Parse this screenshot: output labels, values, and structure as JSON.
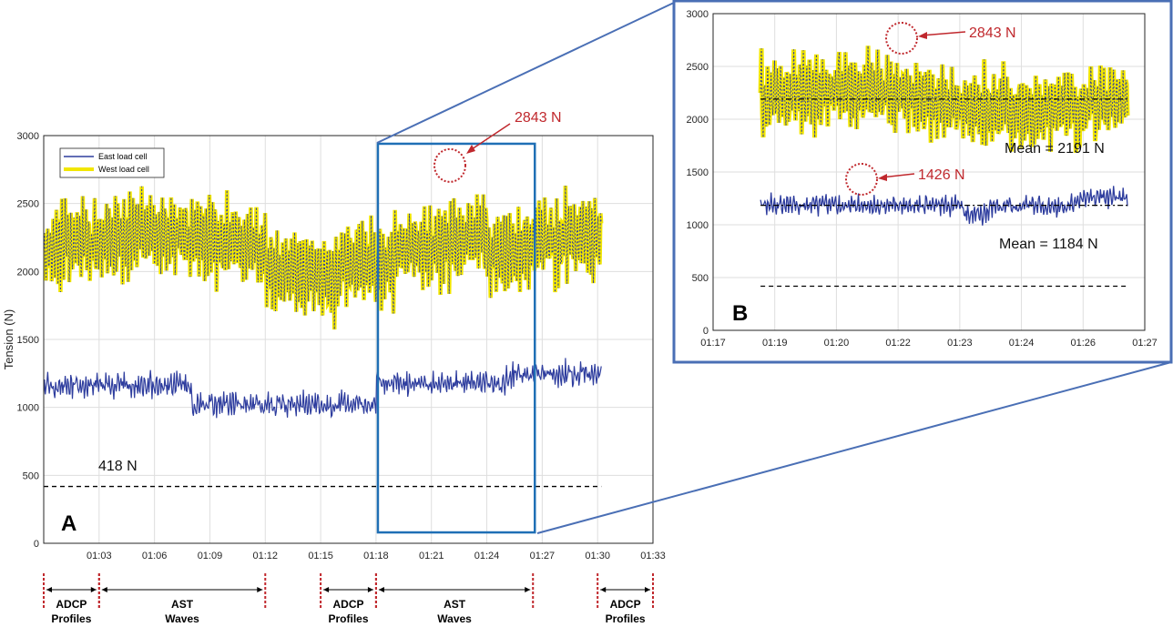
{
  "chart_data": [
    {
      "panel": "A",
      "type": "line",
      "ylabel": "Tension (N)",
      "ylim": [
        0,
        3000
      ],
      "yticks": [
        0,
        500,
        1000,
        1500,
        2000,
        2500,
        3000
      ],
      "x_tick_labels": [
        "01:03",
        "01:06",
        "01:09",
        "01:12",
        "01:15",
        "01:18",
        "01:21",
        "01:24",
        "01:27",
        "01:30",
        "01:33"
      ],
      "x_range_minutes": [
        60,
        93
      ],
      "grid": true,
      "legend": {
        "position": "top-left",
        "entries": [
          "East load cell",
          "West load cell"
        ]
      },
      "series": [
        {
          "name": "West load cell",
          "color": "#f2e600",
          "mean": 2150,
          "range": [
            1450,
            2843
          ],
          "x_range_minutes": [
            60,
            90.2
          ]
        },
        {
          "name": "East load cell",
          "color": "#2e3d9e",
          "mean": 1100,
          "range": [
            820,
            1500
          ],
          "x_range_minutes": [
            60,
            90.2
          ]
        }
      ],
      "reference_lines": [
        {
          "value": 418,
          "label": "418 N",
          "style": "dashed"
        }
      ],
      "annotations": [
        {
          "label": "2843 N",
          "x_minutes": 82,
          "y": 2780
        }
      ],
      "highlight_box": {
        "x_minutes": [
          78.1,
          86.6
        ],
        "y": [
          80,
          2940
        ]
      },
      "panel_label": "A"
    },
    {
      "panel": "B",
      "type": "line",
      "ylim": [
        0,
        3000
      ],
      "yticks": [
        0,
        500,
        1000,
        1500,
        2000,
        2500,
        3000
      ],
      "x_tick_labels": [
        "01:17",
        "01:19",
        "01:20",
        "01:22",
        "01:23",
        "01:24",
        "01:26",
        "01:27"
      ],
      "x_range_minutes": [
        77,
        87
      ],
      "grid": true,
      "series": [
        {
          "name": "West load cell",
          "color": "#f2e600",
          "mean": 2191,
          "range": [
            1650,
            2843
          ],
          "x_range_minutes": [
            78.1,
            86.6
          ]
        },
        {
          "name": "East load cell",
          "color": "#2e3d9e",
          "mean": 1184,
          "range": [
            990,
            1426
          ],
          "x_range_minutes": [
            78.1,
            86.6
          ]
        }
      ],
      "reference_lines": [
        {
          "value": 2191,
          "label": "Mean = 2191 N",
          "style": "dashdot"
        },
        {
          "value": 1184,
          "label": "Mean = 1184 N",
          "style": "dashdot"
        },
        {
          "value": 418,
          "label": "",
          "style": "dashed"
        }
      ],
      "annotations": [
        {
          "label": "2843 N",
          "x_minutes": 81.5,
          "y": 2780
        },
        {
          "label": "1426 N",
          "x_minutes": 80.3,
          "y": 1426
        }
      ],
      "panel_label": "B"
    }
  ],
  "segments": [
    {
      "line1": "ADCP",
      "line2": "Profiles",
      "x_minutes": [
        60,
        63
      ]
    },
    {
      "line1": "AST",
      "line2": "Waves",
      "x_minutes": [
        63,
        72
      ]
    },
    {
      "line1": "ADCP",
      "line2": "Profiles",
      "x_minutes": [
        75,
        78
      ]
    },
    {
      "line1": "AST",
      "line2": "Waves",
      "x_minutes": [
        78,
        86.5
      ]
    },
    {
      "line1": "ADCP",
      "line2": "Profiles",
      "x_minutes": [
        90,
        93
      ]
    }
  ],
  "colors": {
    "west": "#f2e600",
    "east": "#2e3d9e",
    "annotation": "#c0282d",
    "box_a": "#1f6fb5",
    "box_b": "#4a6fb5"
  }
}
